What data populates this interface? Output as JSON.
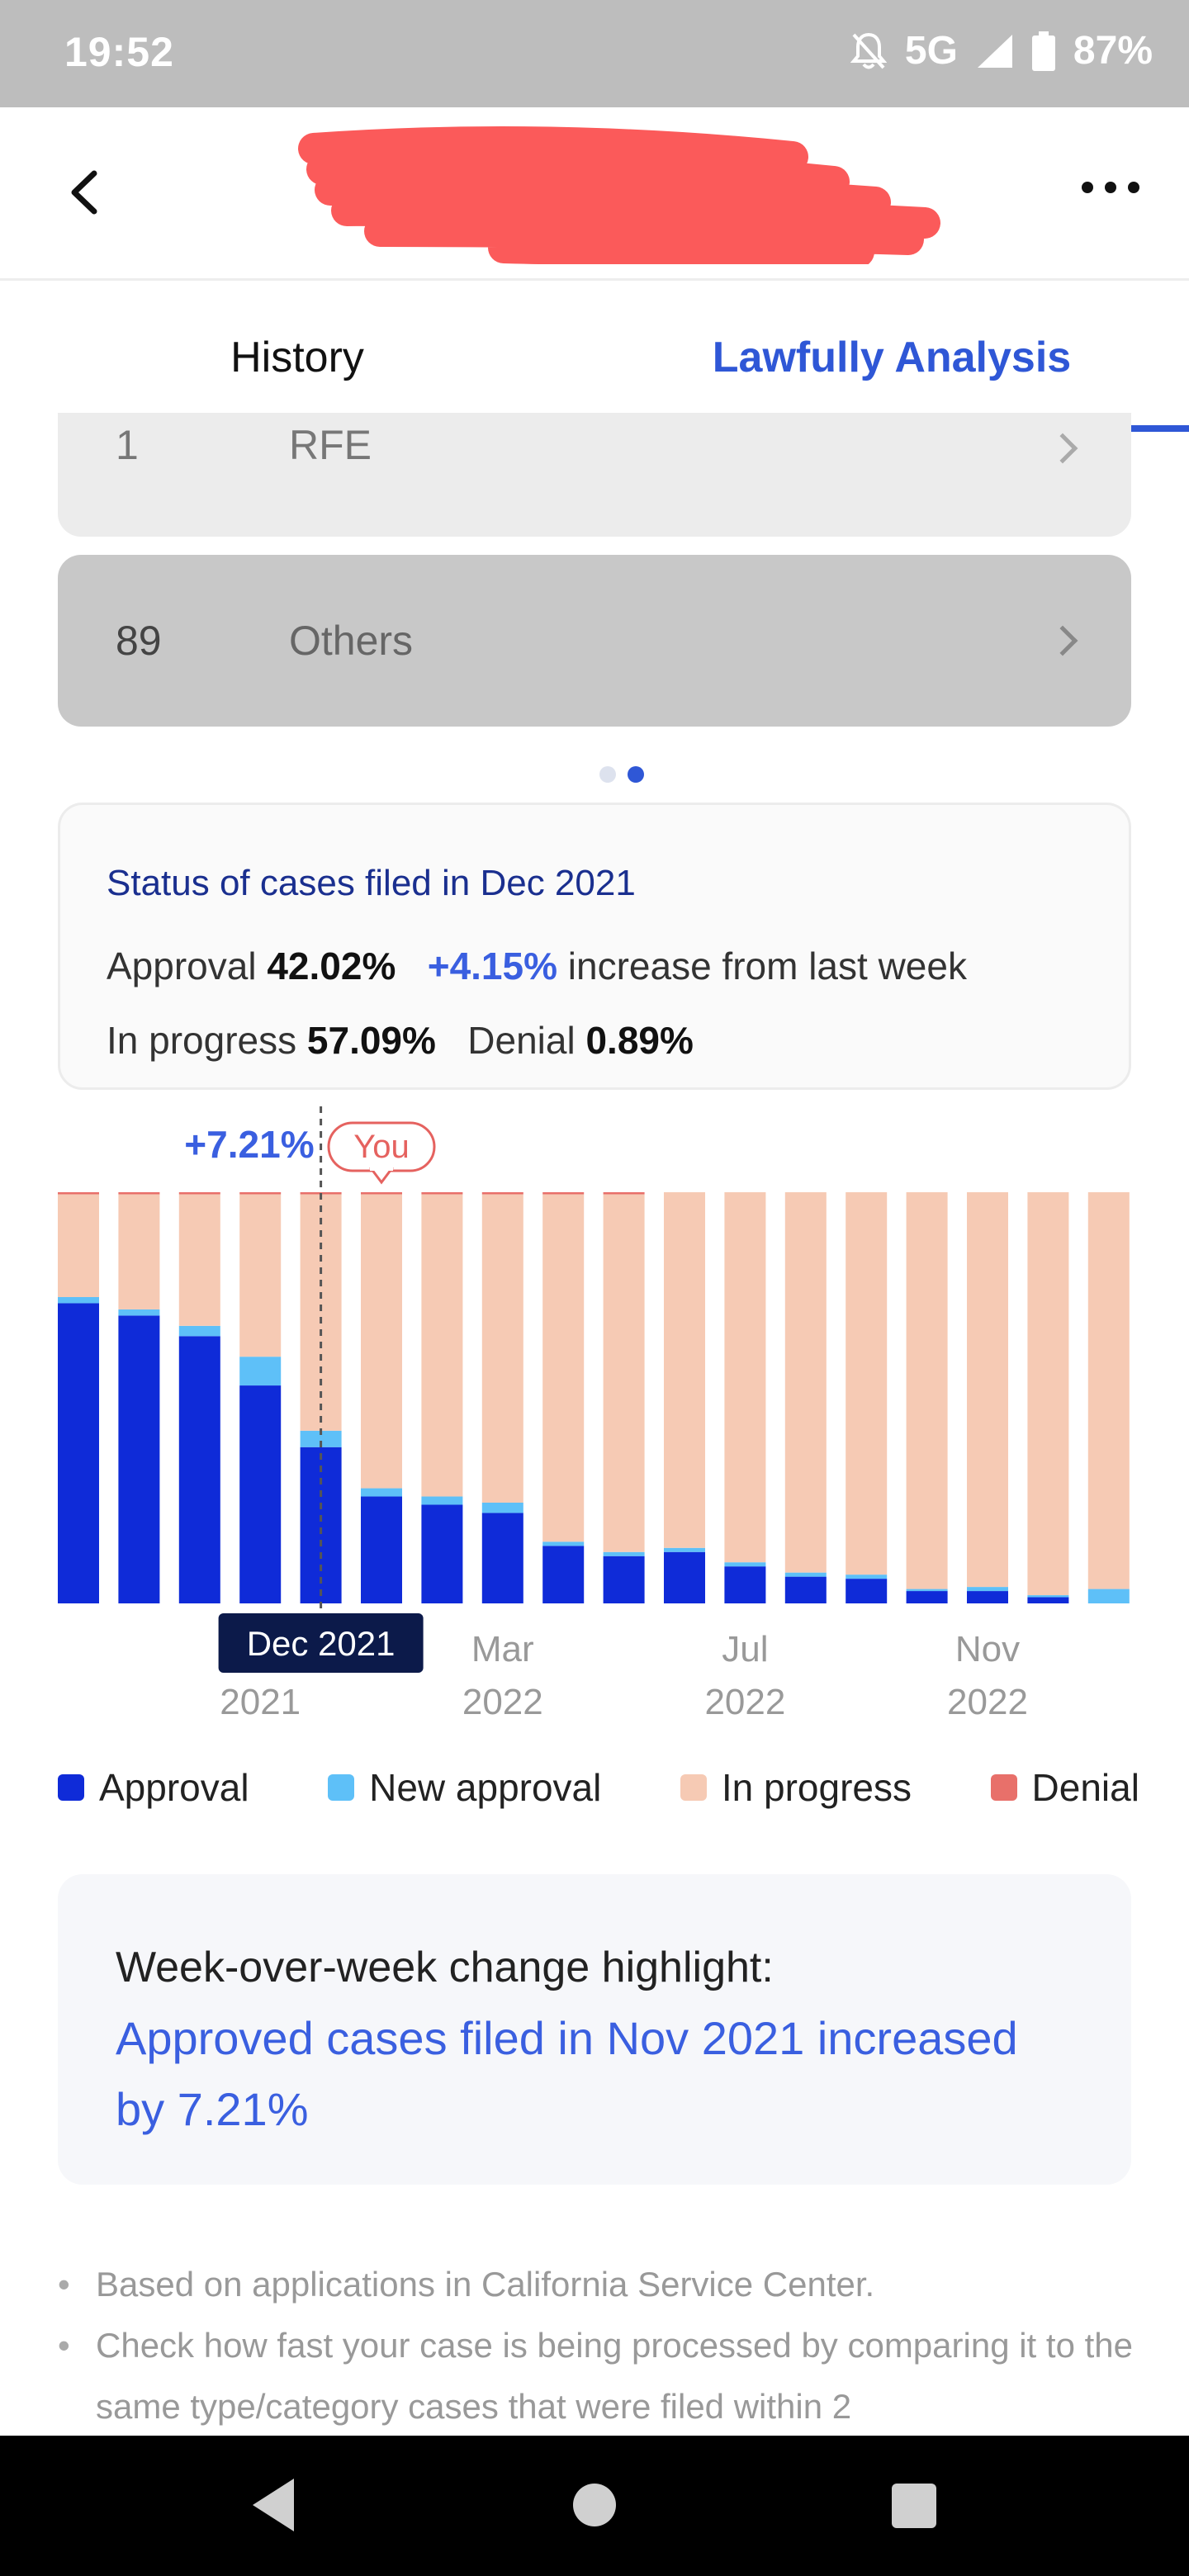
{
  "status_bar": {
    "time": "19:52",
    "network": "5G",
    "battery": "87%",
    "icons": [
      "bell-off-icon",
      "signal-icon",
      "battery-icon"
    ]
  },
  "header": {
    "back_icon": "chevron-left-icon",
    "more_icon": "more-horizontal-icon"
  },
  "tabs": [
    {
      "label": "History",
      "active": false
    },
    {
      "label": "Lawfully Analysis",
      "active": true
    }
  ],
  "categories": [
    {
      "count": "1",
      "label": "RFE"
    },
    {
      "count": "89",
      "label": "Others"
    }
  ],
  "pager": {
    "pages": 2,
    "active": 2
  },
  "status_card": {
    "title": "Status of cases filed in Dec 2021",
    "approval_label": "Approval",
    "approval_value": "42.02%",
    "increase_value": "+4.15%",
    "increase_text": "increase from last week",
    "in_progress_label": "In progress",
    "in_progress_value": "57.09%",
    "denial_label": "Denial",
    "denial_value": "0.89%"
  },
  "chart_data": {
    "type": "bar",
    "stacked": true,
    "ylim": [
      0,
      100
    ],
    "grid": false,
    "legend_position": "bottom",
    "callout_change": "+7.21%",
    "you_label": "You",
    "you_index": 5,
    "highlight_index": 4,
    "highlight_label": "Dec 2021",
    "x_ticks": [
      {
        "index": 3,
        "top": "",
        "bottom": "2021"
      },
      {
        "index": 7,
        "top": "Mar",
        "bottom": "2022"
      },
      {
        "index": 11,
        "top": "Jul",
        "bottom": "2022"
      },
      {
        "index": 15,
        "top": "Nov",
        "bottom": "2022"
      }
    ],
    "series": [
      {
        "name": "Approval",
        "color": "#0f2bd8",
        "values": [
          73,
          70,
          65,
          53,
          38,
          26,
          24,
          22,
          14,
          11.5,
          12.5,
          9,
          6.5,
          6,
          3,
          3,
          1.5,
          0
        ]
      },
      {
        "name": "New approval",
        "color": "#5ec0f8",
        "values": [
          1.5,
          1.5,
          2.5,
          7,
          4,
          2,
          2,
          2.5,
          1,
          1,
          1,
          1,
          1,
          1,
          0.5,
          1,
          0.5,
          3.5
        ]
      },
      {
        "name": "In progress",
        "color": "#f6cab4",
        "values": [
          25,
          28,
          32,
          39.5,
          57.5,
          71.5,
          73.5,
          75,
          84.5,
          87,
          86.5,
          90,
          92.5,
          93,
          96.5,
          96,
          98,
          96.5
        ]
      },
      {
        "name": "Denial",
        "color": "#e8706a",
        "values": [
          0.5,
          0.5,
          0.5,
          0.5,
          0.5,
          0.5,
          0.5,
          0.5,
          0.5,
          0.5,
          0,
          0,
          0,
          0,
          0,
          0,
          0,
          0
        ]
      }
    ]
  },
  "highlight": {
    "title": "Week-over-week change highlight:",
    "body": "Approved cases filed in Nov 2021 increased by 7.21%"
  },
  "notes": [
    "Based on applications in California Service Center.",
    "Check how fast your case is being processed by comparing it to the same type/category cases that were filed within 2"
  ],
  "nav_bar": {
    "icons": [
      "nav-back-icon",
      "nav-home-icon",
      "nav-recents-icon"
    ]
  }
}
